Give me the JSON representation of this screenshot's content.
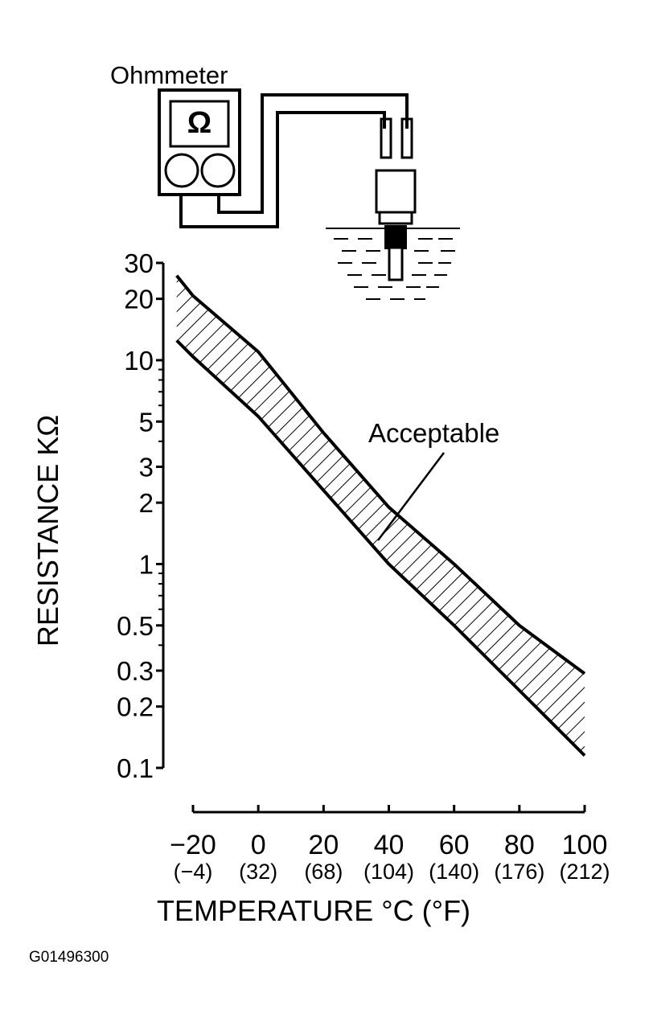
{
  "diagram": {
    "label": "Ohmmeter",
    "symbol": "Ω"
  },
  "figure_id": "G01496300",
  "chart_data": {
    "type": "band",
    "ylabel": "RESISTANCE KΩ",
    "xlabel": "TEMPERATURE °C (°F)",
    "annotation": "Acceptable",
    "x": [
      -25,
      -20,
      0,
      20,
      40,
      60,
      80,
      100
    ],
    "series": [
      {
        "values": [
          26,
          20.7,
          11,
          4.4,
          1.9,
          1.0,
          0.5,
          0.29
        ]
      },
      {
        "values": [
          12.5,
          10.4,
          5.3,
          2.3,
          1.0,
          0.5,
          0.24,
          0.115
        ]
      }
    ],
    "color": "#000000",
    "log_y": true,
    "ylim": [
      0.1,
      30
    ],
    "yticks": [
      0.1,
      0.2,
      0.3,
      0.5,
      1,
      2,
      3,
      5,
      10,
      20,
      30
    ],
    "yminor": [
      0.4,
      0.6,
      0.7,
      0.8,
      0.9,
      4,
      6,
      7,
      8,
      9
    ],
    "xlim": [
      -20,
      100
    ],
    "xticks": [
      {
        "value": -20,
        "label": "−20"
      },
      0,
      20,
      40,
      60,
      80,
      100
    ],
    "xtick_sublabels": [
      "(−4)",
      "(32)",
      "(68)",
      "(104)",
      "(140)",
      "(176)",
      "(212)"
    ]
  }
}
